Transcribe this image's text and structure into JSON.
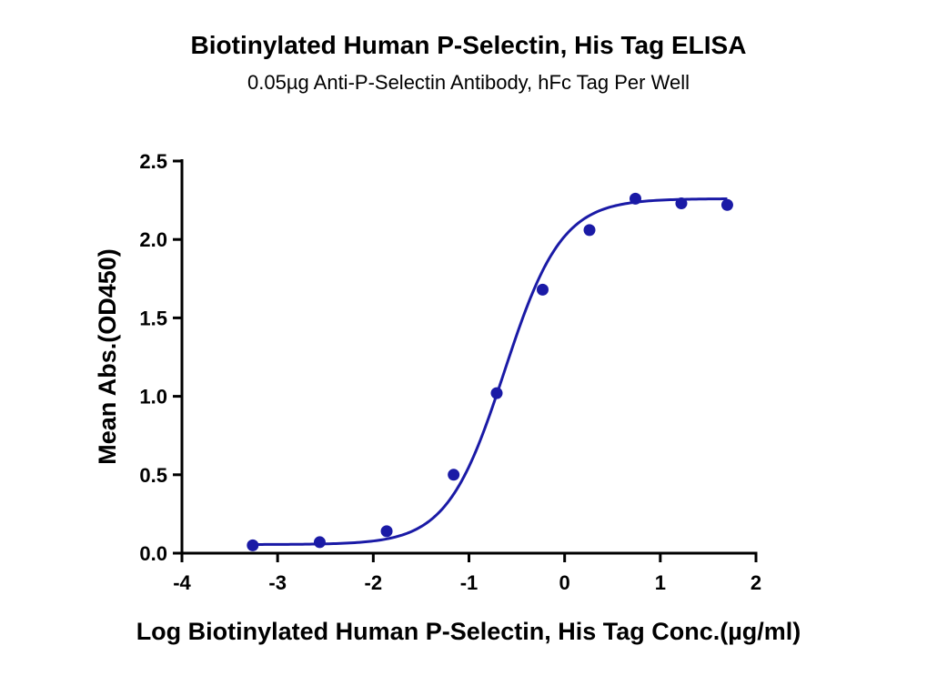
{
  "chart_data": {
    "type": "scatter",
    "title": "Biotinylated Human P-Selectin, His Tag ELISA",
    "subtitle": "0.05µg Anti-P-Selectin Antibody, hFc Tag Per Well",
    "xlabel": "Log Biotinylated Human P-Selectin, His Tag Conc.(µg/ml)",
    "ylabel": "Mean Abs.(OD450)",
    "xlim": [
      -4,
      2
    ],
    "ylim": [
      0,
      2.5
    ],
    "x_ticks": [
      "-4",
      "-3",
      "-2",
      "-1",
      "0",
      "1",
      "2"
    ],
    "y_ticks": [
      "0.0",
      "0.5",
      "1.0",
      "1.5",
      "2.0",
      "2.5"
    ],
    "grid": false,
    "series": [
      {
        "color": "#1a1aa6",
        "x": [
          -3.26,
          -2.56,
          -1.86,
          -1.16,
          -0.71,
          -0.23,
          0.26,
          0.74,
          1.22,
          1.7
        ],
        "y": [
          0.05,
          0.07,
          0.14,
          0.5,
          1.02,
          1.68,
          2.06,
          2.26,
          2.23,
          2.22
        ]
      }
    ],
    "fit_curve": {
      "type": "4PL",
      "color": "#1a1aa6",
      "bottom": 0.055,
      "top": 2.26,
      "log_ec50": -0.63,
      "hill": 1.45,
      "x_range": [
        -3.26,
        1.7
      ]
    }
  }
}
